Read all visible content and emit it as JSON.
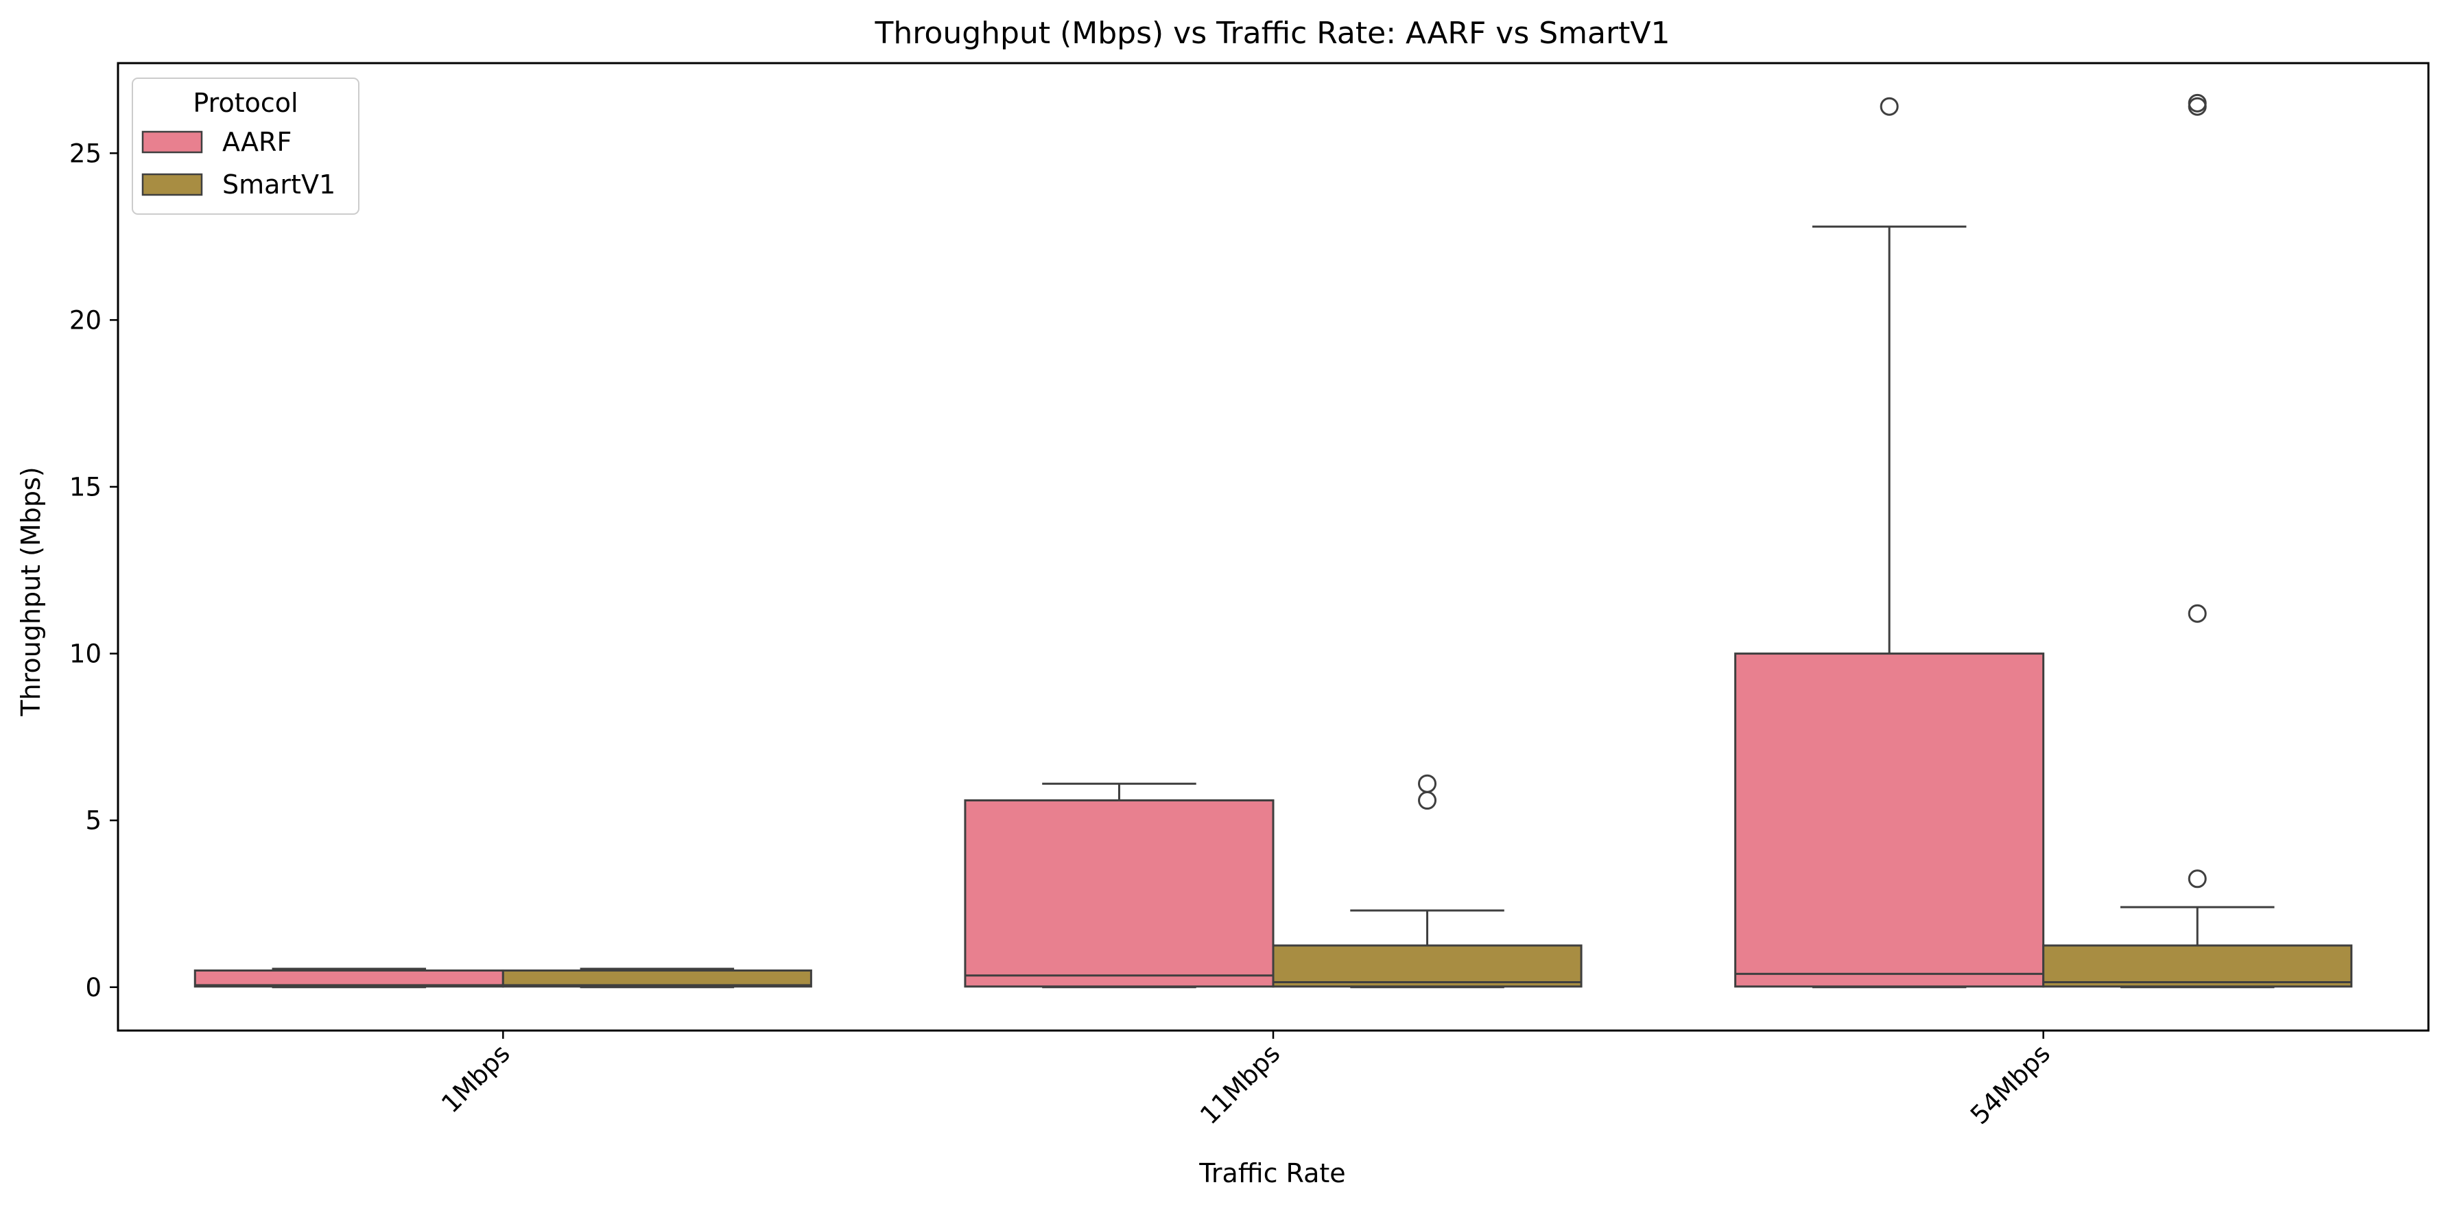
{
  "chart_data": {
    "type": "box",
    "title": "Throughput (Mbps) vs Traffic Rate: AARF vs SmartV1",
    "xlabel": "Traffic Rate",
    "ylabel": "Throughput (Mbps)",
    "ylim": [
      -1.3,
      27.7
    ],
    "yticks": [
      0,
      5,
      10,
      15,
      20,
      25
    ],
    "categories": [
      "1Mbps",
      "11Mbps",
      "54Mbps"
    ],
    "legend": {
      "title": "Protocol",
      "position": "top-left"
    },
    "grid": false,
    "series": [
      {
        "name": "AARF",
        "color": "#e8808f",
        "boxes": [
          {
            "whisker_low": 0,
            "q1": 0.02,
            "median": 0.06,
            "q3": 0.5,
            "whisker_high": 0.55,
            "outliers": []
          },
          {
            "whisker_low": 0,
            "q1": 0.02,
            "median": 0.35,
            "q3": 5.6,
            "whisker_high": 6.1,
            "outliers": []
          },
          {
            "whisker_low": 0,
            "q1": 0.02,
            "median": 0.4,
            "q3": 10.0,
            "whisker_high": 22.8,
            "outliers": [
              26.4
            ]
          }
        ]
      },
      {
        "name": "SmartV1",
        "color": "#a88d42",
        "boxes": [
          {
            "whisker_low": 0,
            "q1": 0.02,
            "median": 0.06,
            "q3": 0.5,
            "whisker_high": 0.55,
            "outliers": []
          },
          {
            "whisker_low": 0,
            "q1": 0.02,
            "median": 0.15,
            "q3": 1.25,
            "whisker_high": 2.3,
            "outliers": [
              5.6,
              6.1
            ]
          },
          {
            "whisker_low": 0,
            "q1": 0.02,
            "median": 0.15,
            "q3": 1.25,
            "whisker_high": 2.4,
            "outliers": [
              3.25,
              11.2,
              26.4,
              26.5
            ]
          }
        ]
      }
    ]
  }
}
